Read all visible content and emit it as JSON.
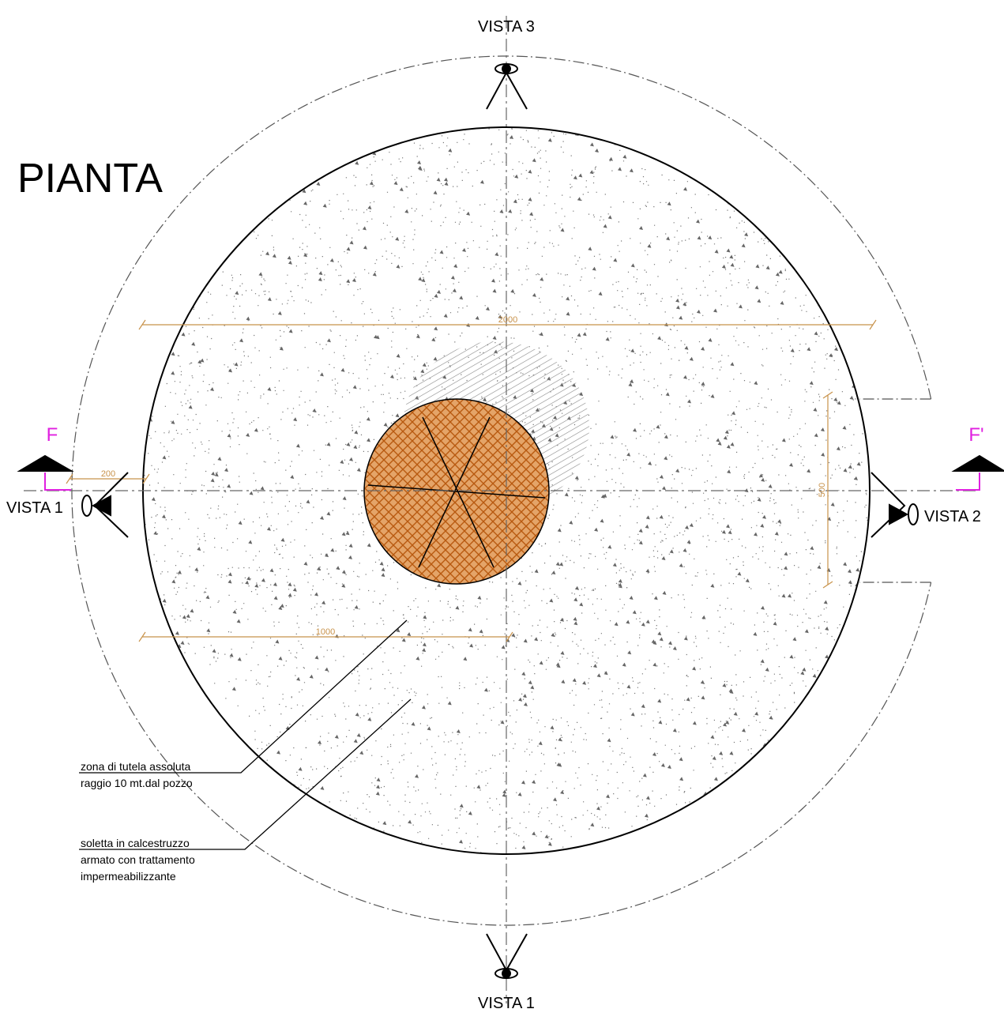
{
  "title": "PIANTA",
  "views": {
    "top": "VISTA 3",
    "left": "VISTA 1",
    "right": "VISTA 2",
    "bottom": "VISTA 1"
  },
  "section": {
    "left": "F",
    "right": "F'"
  },
  "dimensions": {
    "diameter": "2000",
    "offset": "200",
    "radius": "1000",
    "side": "500"
  },
  "notes": [
    {
      "lines": [
        "zona di tutela assoluta",
        "raggio 10 mt.dal pozzo"
      ]
    },
    {
      "lines": [
        "soletta in calcestruzzo",
        "armato con trattamento",
        "impermeabilizzante"
      ]
    }
  ]
}
